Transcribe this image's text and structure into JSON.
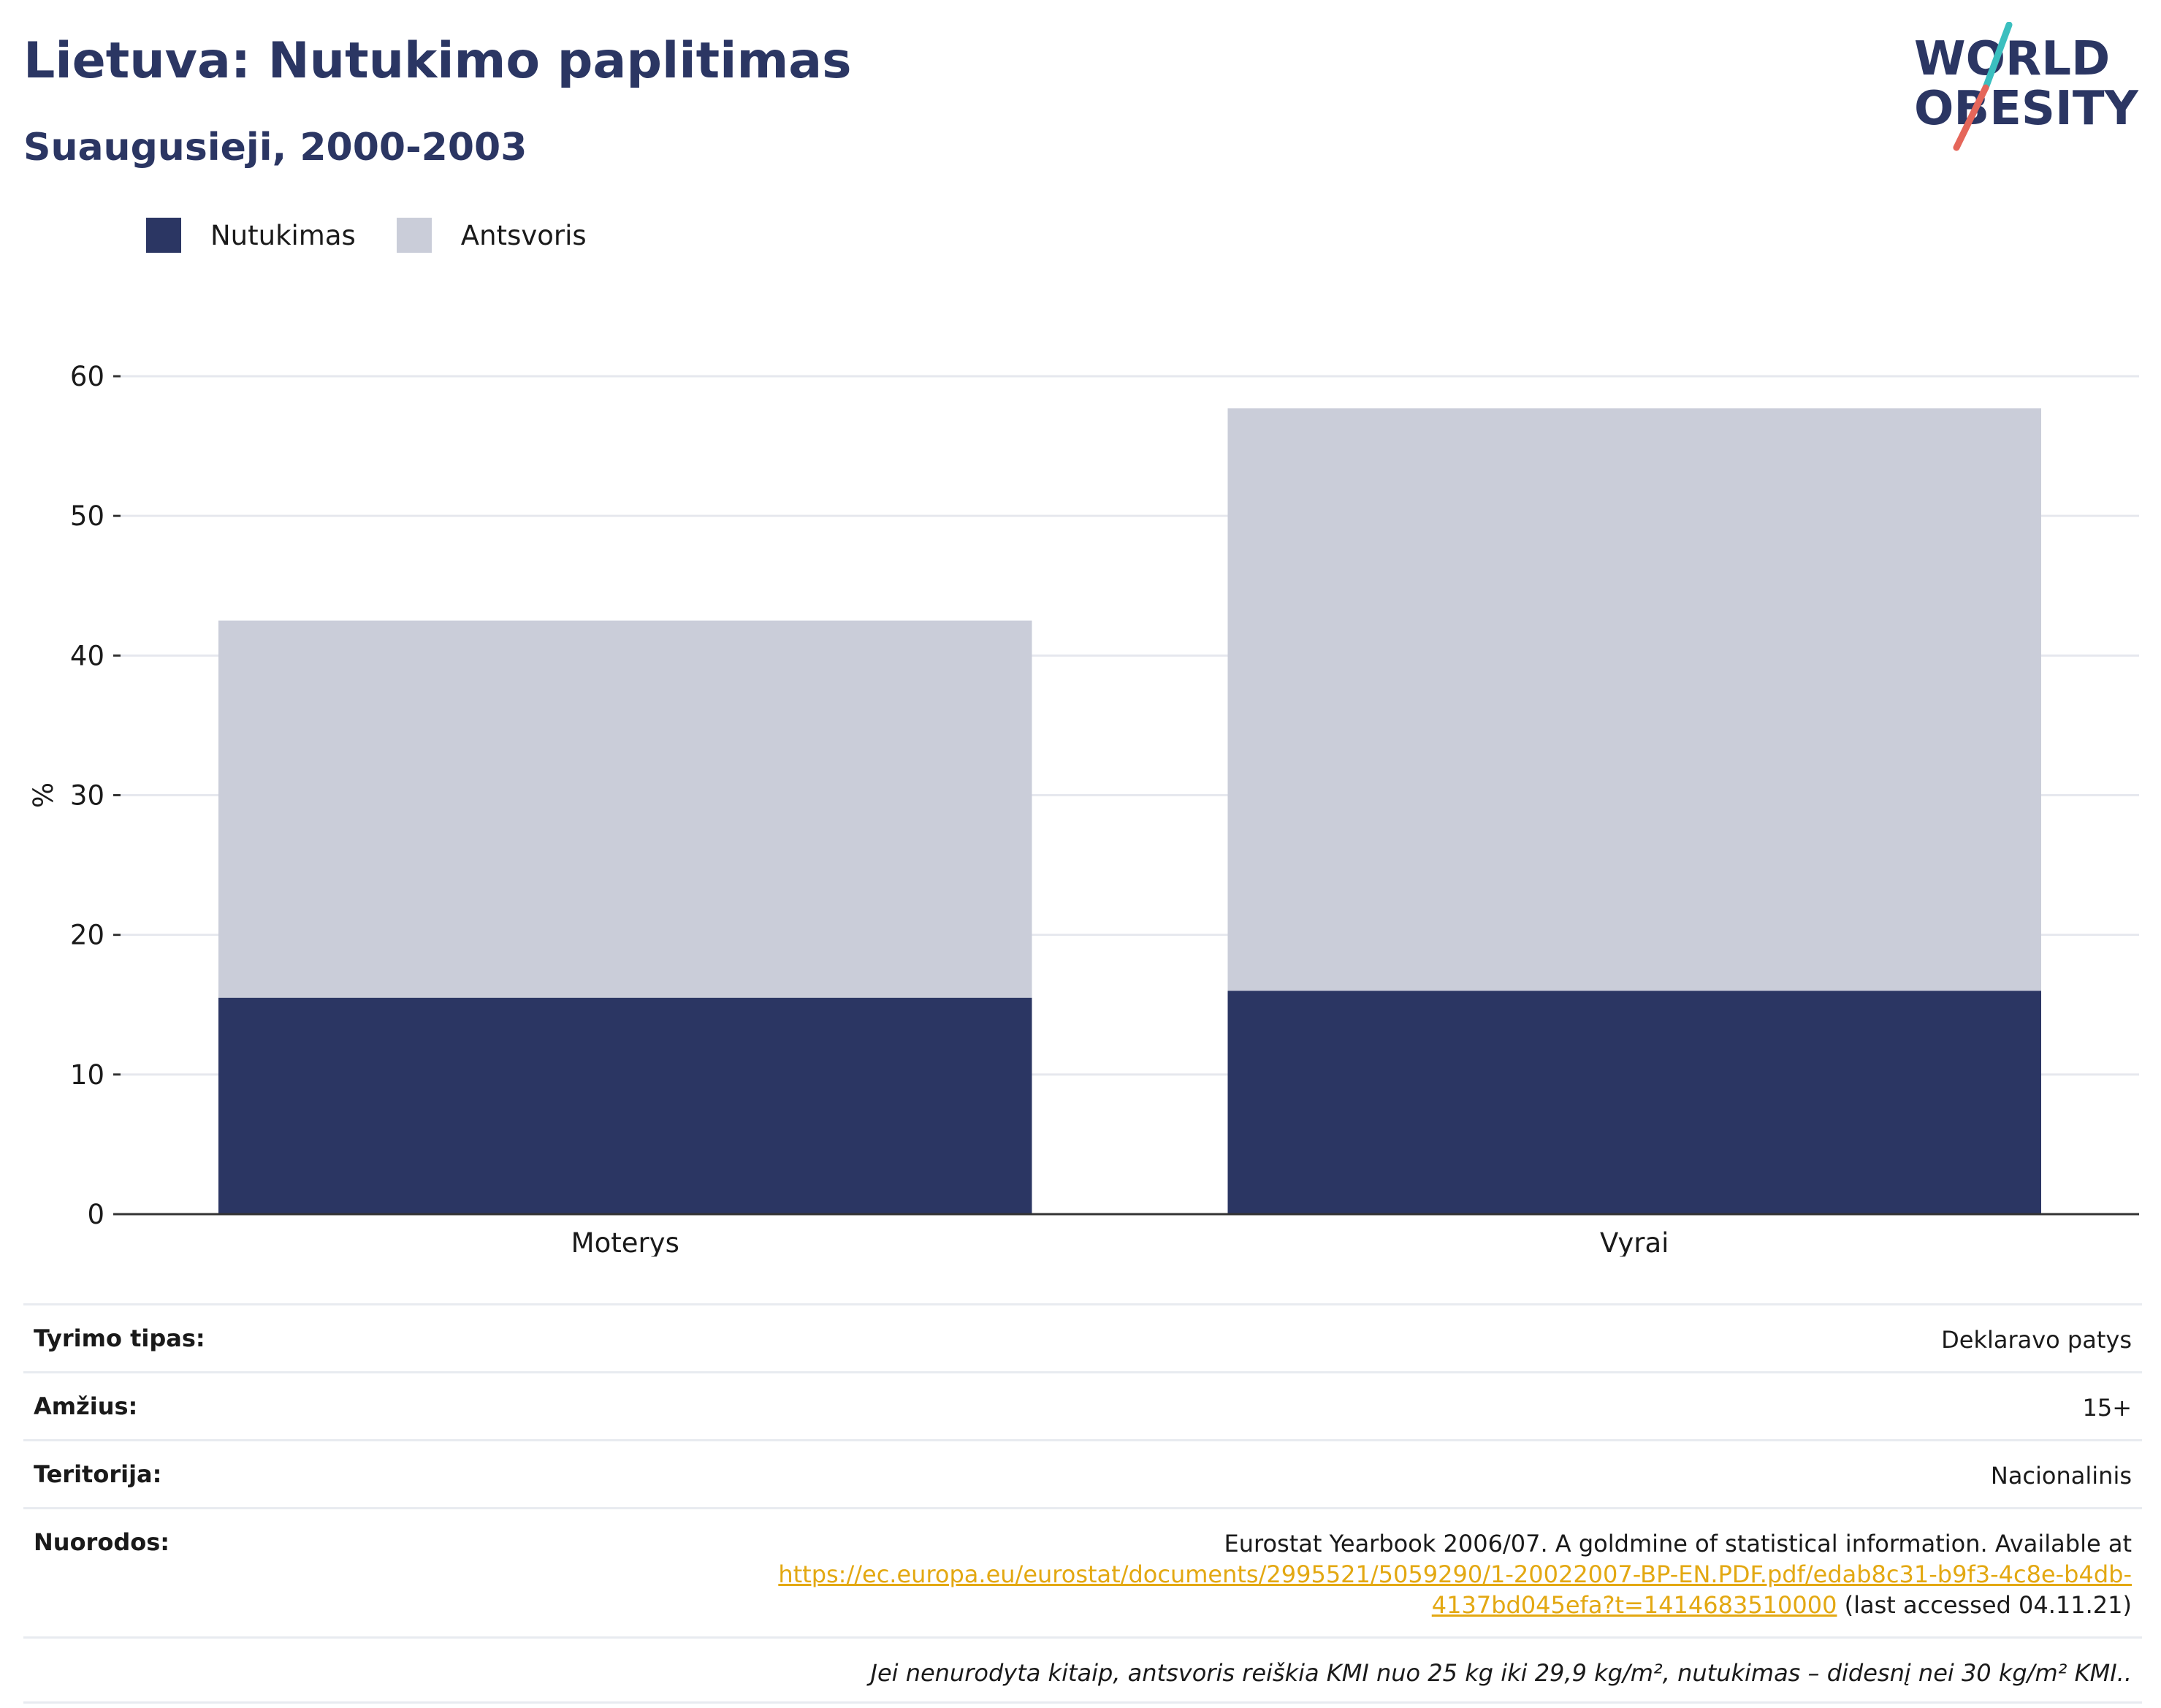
{
  "header": {
    "title": "Lietuva: Nutukimo paplitimas",
    "subtitle": "Suaugusieji, 2000-2003"
  },
  "logo": {
    "line1": "WORLD",
    "line2": "OBESITY",
    "colors": {
      "text": "#2b3663",
      "slash_teal": "#3bbfbf",
      "slash_red": "#e5665a"
    }
  },
  "legend": [
    {
      "label": "Nutukimas",
      "color": "#2b3663"
    },
    {
      "label": "Antsvoris",
      "color": "#cacdd9"
    }
  ],
  "chart_data": {
    "type": "bar",
    "stacked": true,
    "categories": [
      "Moterys",
      "Vyrai"
    ],
    "series": [
      {
        "name": "Nutukimas",
        "color": "#2b3663",
        "values": [
          15.5,
          16.0
        ]
      },
      {
        "name": "Antsvoris",
        "color": "#cacdd9",
        "values": [
          27.0,
          41.7
        ]
      }
    ],
    "ylabel": "%",
    "xlabel": "",
    "ylim": [
      0,
      60
    ],
    "yticks": [
      0,
      10,
      20,
      30,
      40,
      50,
      60
    ],
    "grid": true,
    "legend_position": "top-left"
  },
  "info": {
    "survey_type_label": "Tyrimo tipas:",
    "survey_type_value": "Deklaravo patys",
    "age_label": "Amžius:",
    "age_value": "15+",
    "territory_label": "Teritorija:",
    "territory_value": "Nacionalinis",
    "references_label": "Nuorodos:",
    "references_text": "Eurostat Yearbook 2006/07. A goldmine of statistical information. Available at",
    "references_link_1": "https://ec.europa.eu/eurostat/documents/2995521/5059290/1-20022007-BP-EN.PDF.pdf/edab8c31-b9f3-4c8e-b4db-",
    "references_link_2": "4137bd045efa?t=1414683510000",
    "references_suffix": " (last accessed 04.11.21)",
    "note": "Jei nenurodyta kitaip, antsvoris reiškia KMI nuo 25 kg iki 29,9 kg/m², nutukimas – didesnį nei 30 kg/m² KMI.."
  }
}
